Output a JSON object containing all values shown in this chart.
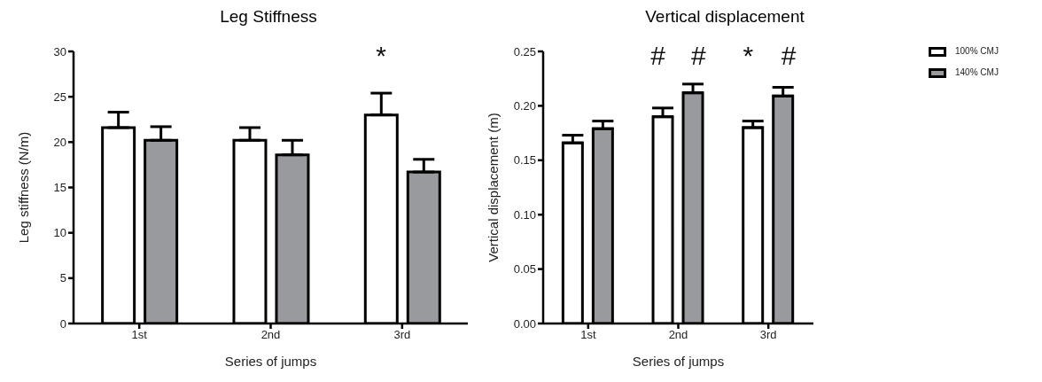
{
  "chart_data": [
    {
      "type": "bar",
      "title": "Leg Stiffness",
      "xlabel": "Series of  jumps",
      "ylabel": "Leg stiffness (N/m)",
      "categories": [
        "1st",
        "2nd",
        "3rd"
      ],
      "series": [
        {
          "color": "#ffffff",
          "values": [
            21.6,
            20.2,
            23.0
          ],
          "errors": [
            [
              21.6,
              23.3
            ],
            [
              20.2,
              21.6
            ],
            [
              23.0,
              25.4
            ]
          ]
        },
        {
          "color": "#999a9e",
          "values": [
            20.2,
            18.6,
            16.7
          ],
          "errors": [
            [
              20.2,
              21.7
            ],
            [
              18.6,
              20.2
            ],
            [
              16.7,
              18.1
            ]
          ]
        }
      ],
      "ylim": [
        0,
        30
      ],
      "yticks": [
        0,
        5,
        10,
        15,
        20,
        25,
        30
      ],
      "grid": false,
      "legend": false,
      "annotations": [
        "*"
      ]
    },
    {
      "type": "bar",
      "title": "Vertical displacement",
      "xlabel": "Series of  jumps",
      "ylabel": "Vertical displacement (m)",
      "categories": [
        "1st",
        "2nd",
        "3rd"
      ],
      "series": [
        {
          "name": "100% CMJ",
          "color": "#ffffff",
          "values": [
            0.166,
            0.19,
            0.18
          ],
          "errors": [
            [
              0.166,
              0.173
            ],
            [
              0.19,
              0.198
            ],
            [
              0.18,
              0.186
            ]
          ]
        },
        {
          "name": "140% CMJ",
          "color": "#999a9e",
          "values": [
            0.179,
            0.212,
            0.209
          ],
          "errors": [
            [
              0.179,
              0.186
            ],
            [
              0.212,
              0.22
            ],
            [
              0.209,
              0.217
            ]
          ]
        }
      ],
      "ylim": [
        0,
        0.25
      ],
      "yticks": [
        {
          "value": 0,
          "label": "0.00"
        },
        {
          "value": 0.05,
          "label": "0.05"
        },
        {
          "value": 0.1,
          "label": "0.10"
        },
        {
          "value": 0.15,
          "label": "0.15"
        },
        {
          "value": 0.2,
          "label": "0.20"
        },
        {
          "value": 0.25,
          "label": "0.25"
        }
      ],
      "grid": false,
      "legend": "top right",
      "annotations": [
        "#",
        "#",
        "*",
        "#"
      ]
    }
  ]
}
